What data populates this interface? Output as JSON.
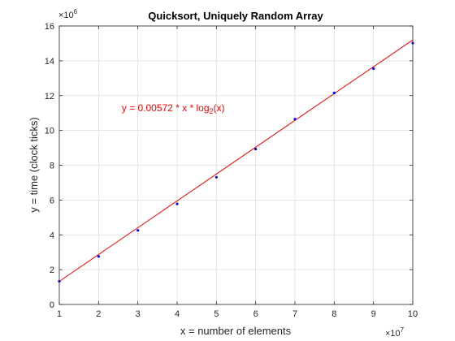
{
  "chart_data": {
    "type": "scatter",
    "title": "Quicksort, Uniquely Random Array",
    "xlabel": "x = number of elements",
    "ylabel": "y = time (clock ticks)",
    "x_exponent_label": "×10",
    "x_exponent_power": "7",
    "y_exponent_label": "×10",
    "y_exponent_power": "6",
    "xlim": [
      1,
      10
    ],
    "ylim": [
      0,
      16
    ],
    "x_ticks": [
      "1",
      "2",
      "3",
      "4",
      "5",
      "6",
      "7",
      "8",
      "9",
      "10"
    ],
    "y_ticks": [
      "0",
      "2",
      "4",
      "6",
      "8",
      "10",
      "12",
      "14",
      "16"
    ],
    "grid": true,
    "series": [
      {
        "kind": "points",
        "color": "#0000ff",
        "x": [
          1,
          2,
          3,
          4,
          5,
          6,
          7,
          8,
          9,
          10
        ],
        "y": [
          1.33,
          2.76,
          4.26,
          5.78,
          7.31,
          8.93,
          10.65,
          12.15,
          13.55,
          15.02
        ]
      },
      {
        "kind": "fit-line",
        "color": "#ff0000",
        "x": [
          1,
          10
        ],
        "y": [
          1.33,
          15.2
        ]
      }
    ],
    "annotation": {
      "text_pre": "y = 0.00572 * x * log",
      "text_sub": "2",
      "text_post": "(x)",
      "color": "#ff0000",
      "x": 3.9,
      "y": 11.1
    }
  }
}
